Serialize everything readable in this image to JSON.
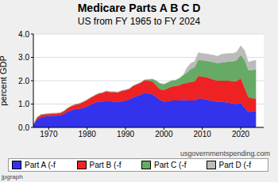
{
  "chart_data": {
    "type": "area",
    "title": "Medicare Parts A B C D",
    "subtitle": "US from FY 1965 to FY 2024",
    "y_label": "percent GDP",
    "annotations": [
      "usgovernmentspending.com",
      "jpgraph"
    ],
    "stacked": true,
    "grid": true,
    "legend": "bottom",
    "x": [
      1966,
      1967,
      1968,
      1969,
      1970,
      1971,
      1972,
      1973,
      1974,
      1975,
      1976,
      1977,
      1978,
      1979,
      1980,
      1981,
      1982,
      1983,
      1984,
      1985,
      1986,
      1987,
      1988,
      1989,
      1990,
      1991,
      1992,
      1993,
      1994,
      1995,
      1996,
      1997,
      1998,
      1999,
      2000,
      2001,
      2002,
      2003,
      2004,
      2005,
      2006,
      2007,
      2008,
      2009,
      2010,
      2011,
      2012,
      2013,
      2014,
      2015,
      2016,
      2017,
      2018,
      2019,
      2020,
      2021,
      2022,
      2023,
      2024
    ],
    "xlim": [
      1966,
      2026
    ],
    "xticks": [
      1970,
      1980,
      1990,
      2000,
      2010,
      2020
    ],
    "ylim": [
      0,
      4
    ],
    "yticks": [
      {
        "value": 0,
        "label": "0.0"
      },
      {
        "value": 1,
        "label": "1.0"
      },
      {
        "value": 2,
        "label": "2.0"
      },
      {
        "value": 3,
        "label": "3.0"
      },
      {
        "value": 4,
        "label": "4.0"
      }
    ],
    "series": [
      {
        "name": "Part A (-f",
        "color": "#3333ee",
        "values": [
          0.1,
          0.35,
          0.42,
          0.47,
          0.48,
          0.5,
          0.5,
          0.52,
          0.58,
          0.68,
          0.74,
          0.78,
          0.8,
          0.84,
          0.9,
          0.98,
          1.05,
          1.1,
          1.1,
          1.15,
          1.12,
          1.1,
          1.08,
          1.12,
          1.15,
          1.2,
          1.28,
          1.35,
          1.4,
          1.48,
          1.45,
          1.42,
          1.3,
          1.18,
          1.1,
          1.12,
          1.15,
          1.15,
          1.15,
          1.18,
          1.15,
          1.15,
          1.15,
          1.25,
          1.22,
          1.2,
          1.15,
          1.12,
          1.1,
          1.1,
          1.08,
          1.05,
          1.02,
          1.0,
          1.05,
          0.85,
          0.65,
          0.7,
          0.68
        ]
      },
      {
        "name": "Part B (-f",
        "color": "#ee2222",
        "values": [
          0.02,
          0.08,
          0.12,
          0.1,
          0.1,
          0.1,
          0.1,
          0.1,
          0.12,
          0.15,
          0.18,
          0.2,
          0.22,
          0.25,
          0.28,
          0.3,
          0.32,
          0.35,
          0.38,
          0.4,
          0.4,
          0.42,
          0.42,
          0.45,
          0.45,
          0.45,
          0.5,
          0.5,
          0.52,
          0.55,
          0.55,
          0.55,
          0.5,
          0.45,
          0.5,
          0.55,
          0.6,
          0.62,
          0.65,
          0.7,
          0.75,
          0.8,
          0.82,
          0.95,
          0.95,
          0.95,
          0.95,
          0.92,
          0.9,
          0.9,
          0.92,
          0.95,
          0.95,
          0.98,
          1.05,
          0.85,
          0.65,
          0.55,
          0.55
        ]
      },
      {
        "name": "Part C (-f",
        "color": "#66aa66",
        "values": [
          0,
          0,
          0,
          0,
          0,
          0,
          0,
          0,
          0,
          0,
          0,
          0,
          0,
          0,
          0,
          0,
          0,
          0,
          0,
          0,
          0,
          0,
          0,
          0,
          0,
          0,
          0,
          0,
          0,
          0,
          0.05,
          0.1,
          0.2,
          0.25,
          0.25,
          0.25,
          0.25,
          0.25,
          0.3,
          0.35,
          0.45,
          0.55,
          0.6,
          0.7,
          0.7,
          0.7,
          0.72,
          0.75,
          0.75,
          0.78,
          0.8,
          0.82,
          0.85,
          0.9,
          1.0,
          1.2,
          1.15,
          1.2,
          1.25
        ]
      },
      {
        "name": "Part D (-f",
        "color": "#bbbbbb",
        "values": [
          0,
          0,
          0,
          0,
          0,
          0,
          0,
          0,
          0,
          0,
          0,
          0,
          0,
          0,
          0,
          0,
          0,
          0,
          0,
          0,
          0,
          0,
          0,
          0,
          0,
          0,
          0,
          0,
          0,
          0,
          0,
          0,
          0,
          0,
          0,
          0,
          0,
          0,
          0,
          0,
          0.2,
          0.25,
          0.25,
          0.3,
          0.3,
          0.3,
          0.3,
          0.3,
          0.3,
          0.35,
          0.35,
          0.35,
          0.35,
          0.35,
          0.4,
          0.4,
          0.35,
          0.4,
          0.4
        ]
      }
    ]
  }
}
